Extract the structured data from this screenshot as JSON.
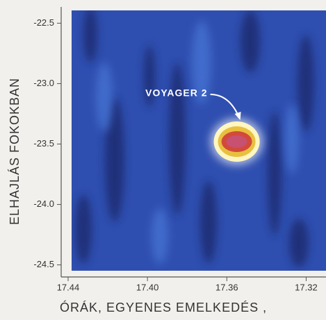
{
  "chart_data": {
    "type": "heatmap",
    "xlabel": "ÓRÁK, EGYENES EMELKEDÉS ,",
    "ylabel": "ELHAJLÁS FOKOKBAN",
    "xlim": [
      17.4435,
      17.31
    ],
    "ylim": [
      -22.4,
      -24.6
    ],
    "xticks": [
      17.44,
      {
        "value": 17.4,
        "label": "17.40"
      },
      17.36,
      17.32
    ],
    "yticks": [
      -22.5,
      {
        "value": -23,
        "label": "-23.0"
      },
      -23.5,
      {
        "value": -24,
        "label": "-24.0"
      },
      -24.5
    ],
    "annotations": [
      {
        "text": "VOYAGER 2",
        "x": 17.355,
        "y": -23.48
      }
    ]
  }
}
